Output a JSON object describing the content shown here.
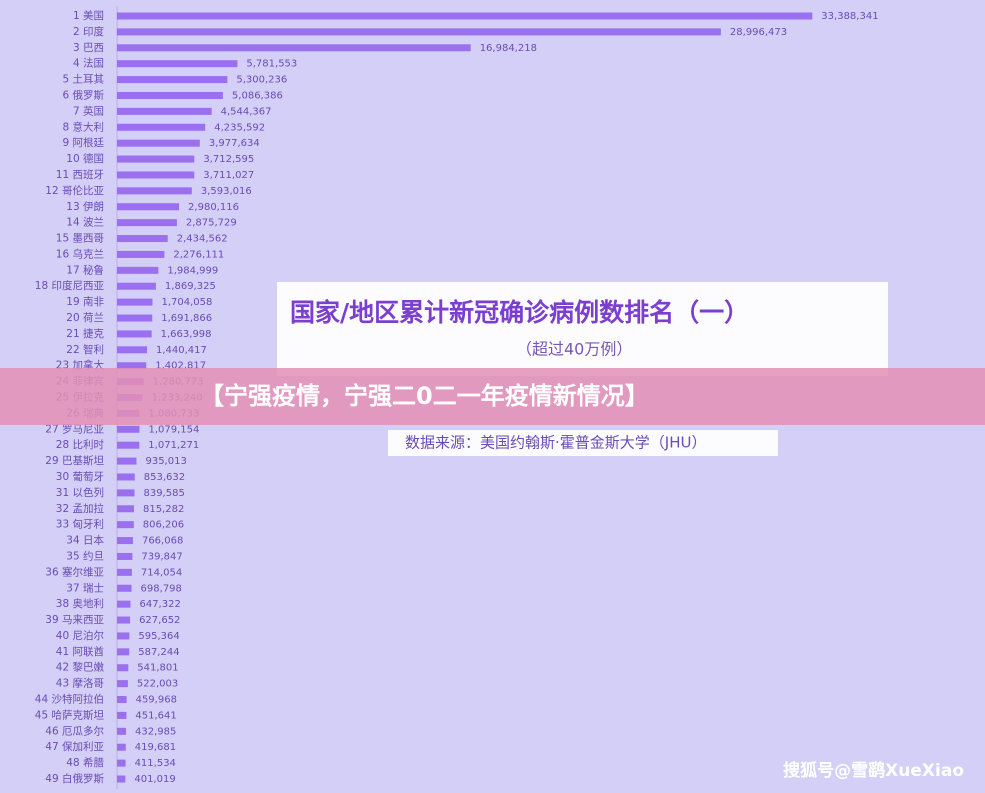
{
  "chart_data": {
    "type": "hbar",
    "title": "国家/地区累计新冠确诊病例数排名（一）",
    "subtitle": "（超过40万例）",
    "source": "数据来源：美国约翰斯·霍普金斯大学（JHU）",
    "color": "#9a6ff0",
    "xlim": [
      0,
      40000000
    ],
    "categories": [
      "1 美国",
      "2 印度",
      "3 巴西",
      "4 法国",
      "5 土耳其",
      "6 俄罗斯",
      "7 英国",
      "8 意大利",
      "9 阿根廷",
      "10 德国",
      "11 西班牙",
      "12 哥伦比亚",
      "13 伊朗",
      "14 波兰",
      "15 墨西哥",
      "16 乌克兰",
      "17 秘鲁",
      "18 印度尼西亚",
      "19 南非",
      "20 荷兰",
      "21 捷克",
      "22 智利",
      "23 加拿大",
      "24 菲律宾",
      "25 伊拉克",
      "26 瑞典",
      "27 罗马尼亚",
      "28 比利时",
      "29 巴基斯坦",
      "30 葡萄牙",
      "31 以色列",
      "32 孟加拉",
      "33 匈牙利",
      "34 日本",
      "35 约旦",
      "36 塞尔维亚",
      "37 瑞士",
      "38 奥地利",
      "39 马来西亚",
      "40 尼泊尔",
      "41 阿联酋",
      "42 黎巴嫩",
      "43 摩洛哥",
      "44 沙特阿拉伯",
      "45 哈萨克斯坦",
      "46 厄瓜多尔",
      "47 保加利亚",
      "48 希腊",
      "49 白俄罗斯"
    ],
    "values": [
      33388341,
      28996473,
      16984218,
      5781553,
      5300236,
      5086386,
      4544367,
      4235592,
      3977634,
      3712595,
      3711027,
      3593016,
      2980116,
      2875729,
      2434562,
      2276111,
      1984999,
      1869325,
      1704058,
      1691866,
      1663998,
      1440417,
      1402817,
      1280773,
      1233240,
      1080733,
      1079154,
      1071271,
      935013,
      853632,
      839585,
      815282,
      806206,
      766068,
      739847,
      714054,
      698798,
      647322,
      627652,
      595364,
      587244,
      541801,
      522003,
      459968,
      451641,
      432985,
      419681,
      411534,
      401019
    ],
    "value_labels": [
      "33,388,341",
      "28,996,473",
      "16,984,218",
      "5,781,553",
      "5,300,236",
      "5,086,386",
      "4,544,367",
      "4,235,592",
      "3,977,634",
      "3,712,595",
      "3,711,027",
      "3,593,016",
      "2,980,116",
      "2,875,729",
      "2,434,562",
      "2,276,111",
      "1,984,999",
      "1,869,325",
      "1,704,058",
      "1,691,866",
      "1,663,998",
      "1,440,417",
      "1,402,817",
      "1,280,773",
      "1,233,240",
      "1,080,733",
      "1,079,154",
      "1,071,271",
      "935,013",
      "853,632",
      "839,585",
      "815,282",
      "806,206",
      "766,068",
      "739,847",
      "714,054",
      "698,798",
      "647,322",
      "627,652",
      "595,364",
      "587,244",
      "541,801",
      "522,003",
      "459,968",
      "451,641",
      "432,985",
      "419,681",
      "411,534",
      "401,019"
    ]
  },
  "banner": "【宁强疫情，宁强二0二一年疫情新情况】",
  "watermark": "搜狐号@雪鹞XueXiao"
}
